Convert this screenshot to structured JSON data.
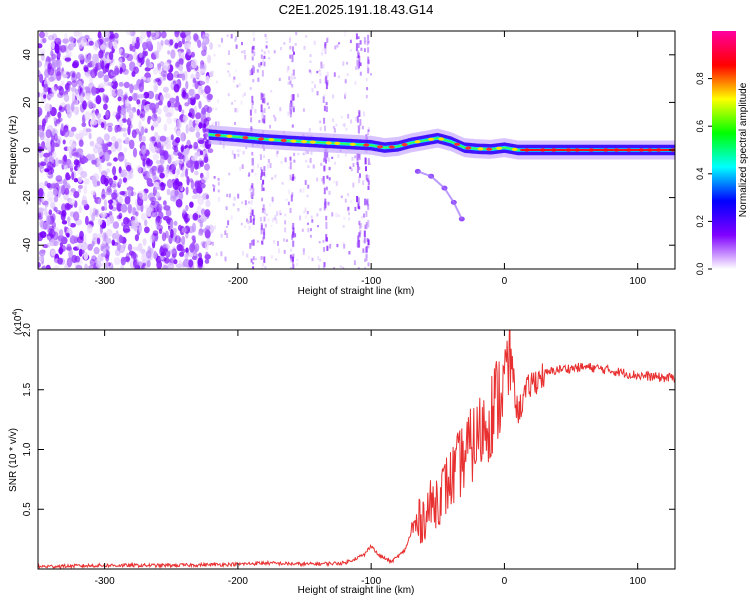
{
  "title": "C2E1.2025.191.18.43.G14",
  "chart_data": [
    {
      "type": "heatmap",
      "xlabel": "Height of straight line (km)",
      "ylabel": "Frequency (Hz)",
      "xlim": [
        -350,
        128
      ],
      "ylim": [
        -50,
        50
      ],
      "xticks": [
        -300,
        -200,
        -100,
        0,
        100
      ],
      "yticks": [
        -40,
        -20,
        0,
        20,
        40
      ],
      "grid": false,
      "colorbar": {
        "label": "Normalized spectral amplitude",
        "range": [
          0,
          1
        ],
        "ticks": [
          "0.0",
          "0.2",
          "0.4",
          "0.6",
          "0.8"
        ],
        "colors": [
          "#ffffff",
          "#8000ff",
          "#0000ff",
          "#00ffff",
          "#00ff00",
          "#ffff00",
          "#ff0000",
          "#ff00a0"
        ]
      },
      "features": {
        "noise_region_x": [
          -350,
          -220
        ],
        "sparse_noise_x": [
          -220,
          -100
        ],
        "signal_ridge": {
          "x": [
            -222,
            -200,
            -180,
            -160,
            -140,
            -120,
            -100,
            -90,
            -80,
            -70,
            -60,
            -50,
            -40,
            -30,
            -20,
            -10,
            0,
            10,
            50,
            128
          ],
          "y": [
            6.5,
            5.5,
            4.5,
            3.8,
            3.2,
            2.6,
            2.0,
            1.0,
            1.5,
            3.0,
            4.0,
            5.0,
            3.5,
            1.0,
            0.5,
            0.3,
            1.0,
            0.0,
            0.0,
            0.0
          ]
        },
        "descending_branch": {
          "x": [
            -65,
            -55,
            -45,
            -38,
            -32
          ],
          "y": [
            -9,
            -11,
            -16,
            -22,
            -29
          ]
        }
      }
    },
    {
      "type": "line",
      "xlabel": "Height of straight line (km)",
      "ylabel": "SNR (10 * v/v)",
      "multiplier": "(x10",
      "multiplier_exp": "4",
      "xlim": [
        -350,
        128
      ],
      "ylim": [
        0,
        2.0
      ],
      "xticks": [
        -300,
        -200,
        -100,
        0,
        100
      ],
      "yticks": [
        "0.5",
        "1.0",
        "1.5",
        "2.0"
      ],
      "grid": false,
      "color": "#e83030",
      "series": [
        {
          "x": [
            -350,
            -300,
            -250,
            -200,
            -180,
            -150,
            -120,
            -105,
            -100,
            -95,
            -85,
            -75,
            -70,
            -60,
            -50,
            -40,
            -30,
            -20,
            -10,
            0,
            5,
            8,
            10,
            15,
            20,
            30,
            40,
            50,
            60,
            70,
            80,
            90,
            100,
            110,
            120,
            128
          ],
          "y": [
            0.02,
            0.03,
            0.03,
            0.04,
            0.05,
            0.04,
            0.05,
            0.12,
            0.2,
            0.12,
            0.06,
            0.15,
            0.3,
            0.45,
            0.6,
            0.75,
            0.95,
            1.1,
            1.3,
            1.55,
            1.8,
            1.45,
            1.3,
            1.45,
            1.55,
            1.63,
            1.67,
            1.68,
            1.69,
            1.68,
            1.66,
            1.64,
            1.62,
            1.61,
            1.6,
            1.6
          ]
        }
      ]
    }
  ]
}
